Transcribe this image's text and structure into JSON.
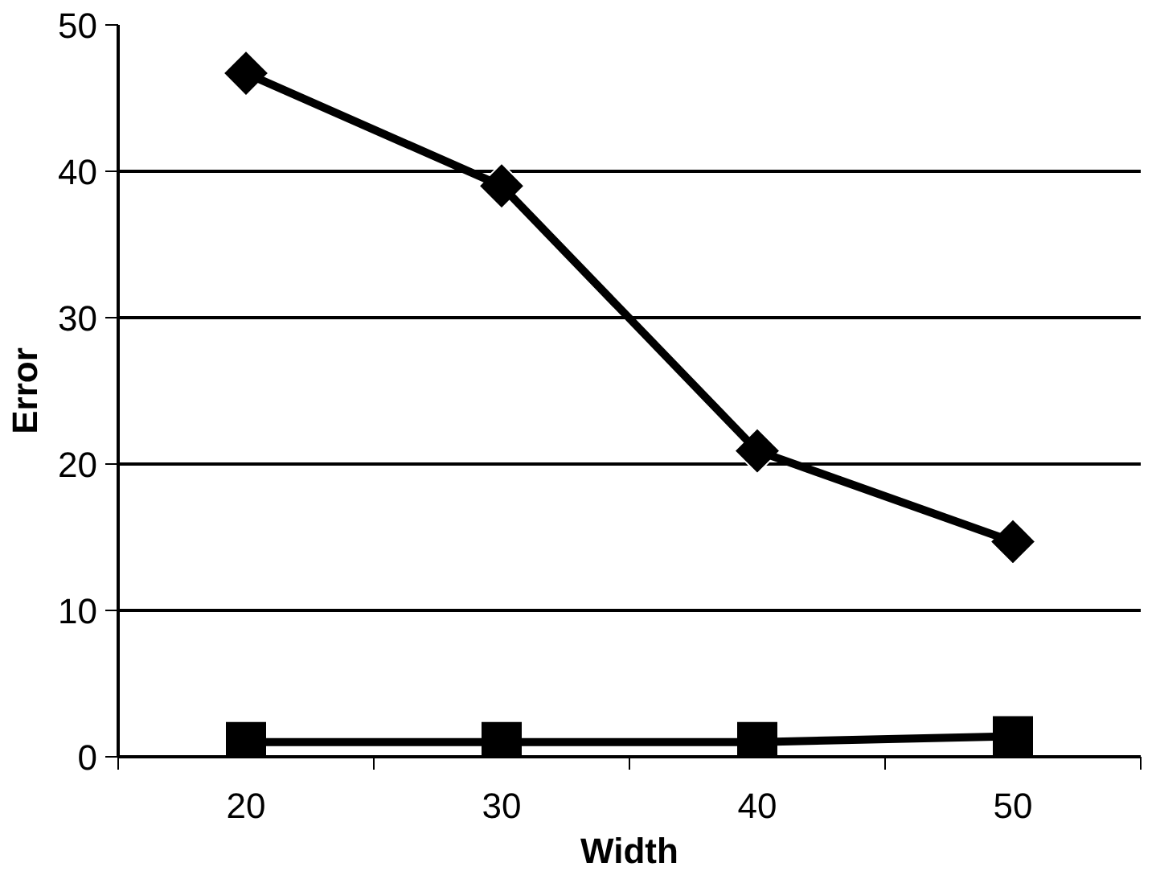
{
  "chart_data": {
    "type": "line",
    "xlabel": "Width",
    "ylabel": "Error",
    "categories": [
      "20",
      "30",
      "40",
      "50"
    ],
    "series": [
      {
        "color": "#000000",
        "values": [
          46.7,
          39,
          20.9,
          14.7
        ],
        "marker": "diamond"
      },
      {
        "color": "#000000",
        "values": [
          1,
          1,
          1,
          1.4
        ],
        "marker": "square"
      }
    ],
    "ylim": [
      0,
      50
    ],
    "yticks": [
      0,
      10,
      20,
      30,
      40,
      50
    ],
    "grid": "y",
    "line_style": "solid"
  }
}
